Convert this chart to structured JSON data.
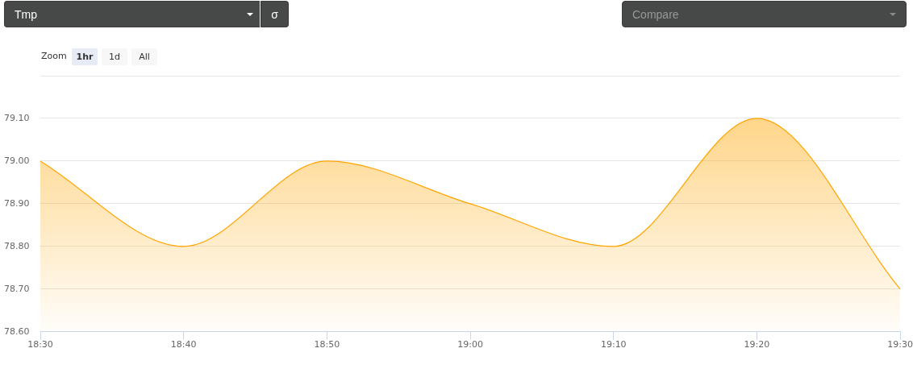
{
  "chart_data": {
    "type": "area",
    "categories": [
      "18:30",
      "18:40",
      "18:50",
      "19:00",
      "19:10",
      "19:20",
      "19:30"
    ],
    "values": [
      79.0,
      78.8,
      79.0,
      78.9,
      78.8,
      79.1,
      78.7
    ],
    "color": "#ffa500",
    "ylim": [
      78.6,
      79.2
    ],
    "yticks": [
      {
        "value": 78.6,
        "label": "78.60"
      },
      {
        "value": 78.7,
        "label": "78.70"
      },
      {
        "value": 78.8,
        "label": "78.80"
      },
      {
        "value": 78.9,
        "label": "78.90"
      },
      {
        "value": 79.0,
        "label": "79.00"
      },
      {
        "value": 79.1,
        "label": "79.10"
      },
      {
        "value": 79.2,
        "label": null
      }
    ],
    "grid": "y",
    "legend": false,
    "annotations": [
      "Tmp",
      "σ",
      "Compare",
      "Zoom",
      "1hr",
      "1d",
      "All"
    ]
  }
}
